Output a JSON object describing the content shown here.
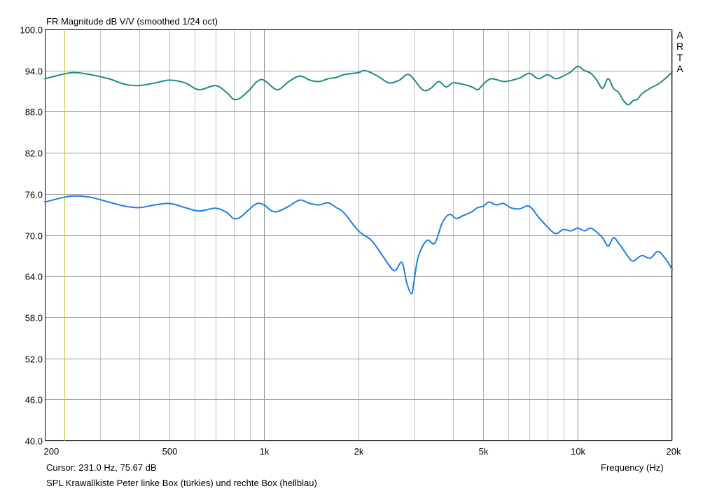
{
  "title": "FR Magnitude dB V/V (smoothed 1/24 oct)",
  "brand_letters": [
    "A",
    "R",
    "T",
    "A"
  ],
  "cursor_readout": "Cursor: 231.0 Hz, 75.67 dB",
  "x_axis_label": "Frequency (Hz)",
  "caption": "SPL Krawallkiste Peter linke Box (türkies) und rechte Box (hellblau)",
  "colors": {
    "turquoise": "#1f8a84",
    "lightblue": "#1d7fe0",
    "cursor": "#c8c832",
    "grid_major": "#b0b0b0",
    "grid_minor": "#c4c4c4",
    "background": "#ffffff"
  },
  "chart_data": {
    "type": "line",
    "title": "FR Magnitude dB V/V (smoothed 1/24 oct)",
    "xlabel": "Frequency (Hz)",
    "ylabel": "",
    "xscale": "log",
    "xlim": [
      200,
      20000
    ],
    "ylim": [
      40,
      100
    ],
    "grid": true,
    "y_ticks": [
      100,
      94,
      88,
      82,
      76,
      70,
      64,
      58,
      52,
      46,
      40
    ],
    "y_tick_labels": [
      "100.0",
      "94.0",
      "88.0",
      "82.0",
      "76.0",
      "70.0",
      "64.0",
      "58.0",
      "52.0",
      "46.0",
      "40.0"
    ],
    "x_ticks": [
      200,
      500,
      1000,
      2000,
      5000,
      10000,
      20000
    ],
    "x_tick_labels": [
      "200",
      "500",
      "1k",
      "2k",
      "5k",
      "10k",
      "20k"
    ],
    "x_minor_grid": [
      300,
      400,
      600,
      700,
      800,
      900,
      3000,
      4000,
      6000,
      7000,
      8000,
      9000
    ],
    "cursor": {
      "x": 231.0,
      "y": 75.67
    },
    "series": [
      {
        "name": "linke Box (türkies)",
        "color": "#1f8a84",
        "x": [
          200,
          230,
          250,
          280,
          320,
          360,
          400,
          450,
          500,
          560,
          620,
          700,
          760,
          800,
          840,
          900,
          950,
          1000,
          1100,
          1200,
          1300,
          1400,
          1500,
          1600,
          1700,
          1800,
          2000,
          2100,
          2300,
          2500,
          2700,
          2900,
          3200,
          3400,
          3600,
          3800,
          4000,
          4300,
          4600,
          4800,
          5000,
          5300,
          5800,
          6200,
          6600,
          7000,
          7500,
          8000,
          8500,
          9000,
          9500,
          10000,
          10500,
          11000,
          11500,
          12000,
          12500,
          13000,
          13500,
          14000,
          14500,
          15000,
          15500,
          16000,
          17000,
          18000,
          19000,
          20000
        ],
        "y": [
          92.8,
          93.5,
          93.7,
          93.4,
          92.8,
          92.0,
          91.8,
          92.2,
          92.6,
          92.2,
          91.2,
          91.8,
          90.8,
          89.8,
          90.0,
          91.2,
          92.4,
          92.6,
          91.2,
          92.4,
          93.2,
          92.6,
          92.4,
          92.8,
          93.0,
          93.4,
          93.7,
          94.0,
          93.2,
          92.2,
          92.6,
          93.4,
          91.2,
          91.4,
          92.4,
          91.6,
          92.2,
          92.0,
          91.6,
          91.2,
          92.0,
          92.8,
          92.4,
          92.6,
          93.0,
          93.6,
          92.8,
          93.4,
          92.8,
          93.2,
          93.8,
          94.6,
          94.0,
          93.6,
          92.6,
          91.4,
          92.8,
          91.4,
          90.8,
          89.6,
          89.0,
          89.6,
          89.8,
          90.6,
          91.4,
          92.0,
          92.8,
          93.8
        ]
      },
      {
        "name": "rechte Box (hellblau)",
        "color": "#1d7fe0",
        "x": [
          200,
          230,
          250,
          280,
          320,
          360,
          400,
          450,
          500,
          560,
          620,
          700,
          760,
          800,
          840,
          900,
          950,
          1000,
          1050,
          1100,
          1200,
          1300,
          1400,
          1500,
          1600,
          1700,
          1800,
          2000,
          2200,
          2400,
          2600,
          2750,
          2850,
          2950,
          3000,
          3100,
          3300,
          3500,
          3700,
          3900,
          4100,
          4300,
          4600,
          4800,
          5000,
          5200,
          5500,
          5800,
          6100,
          6500,
          7000,
          7500,
          8000,
          8500,
          9000,
          9500,
          10000,
          10500,
          11000,
          11500,
          12000,
          12500,
          13000,
          13500,
          14000,
          14500,
          15000,
          16000,
          17000,
          18000,
          19000,
          20000
        ],
        "y": [
          74.8,
          75.5,
          75.7,
          75.5,
          74.8,
          74.2,
          74.0,
          74.4,
          74.6,
          74.0,
          73.5,
          73.9,
          73.3,
          72.4,
          72.6,
          73.8,
          74.6,
          74.4,
          73.6,
          73.4,
          74.2,
          75.1,
          74.6,
          74.4,
          74.7,
          74.0,
          73.2,
          70.6,
          69.2,
          66.8,
          64.8,
          66.0,
          63.0,
          61.4,
          63.0,
          66.8,
          69.2,
          68.8,
          71.8,
          73.0,
          72.4,
          72.8,
          73.4,
          74.0,
          74.2,
          74.8,
          74.4,
          74.6,
          74.0,
          73.8,
          74.2,
          72.6,
          71.2,
          70.2,
          70.8,
          70.6,
          71.0,
          70.6,
          71.0,
          70.4,
          69.6,
          68.4,
          69.6,
          68.8,
          67.8,
          66.8,
          66.2,
          67.0,
          66.6,
          67.6,
          66.6,
          65.0
        ]
      }
    ]
  }
}
